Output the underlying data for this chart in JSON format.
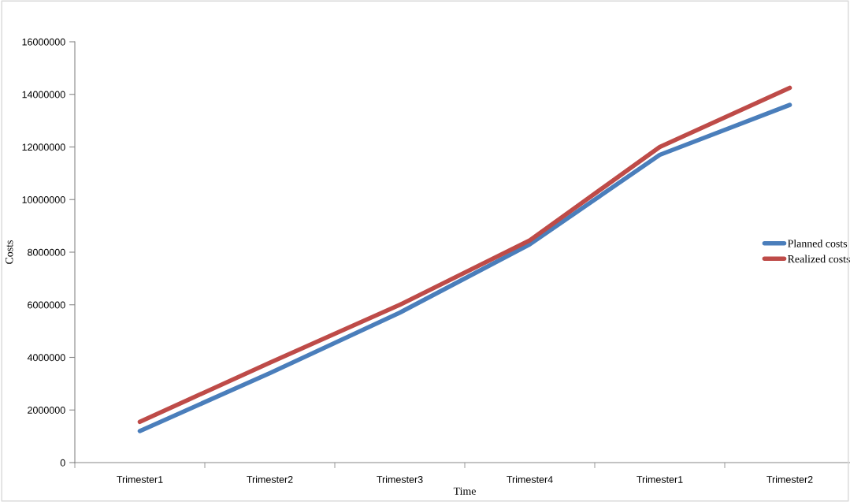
{
  "chart_data": {
    "type": "line",
    "xlabel": "Time",
    "ylabel": "Costs",
    "categories": [
      "Trimester1",
      "Trimester2",
      "Trimester3",
      "Trimester4",
      "Trimester1",
      "Trimester2"
    ],
    "series": [
      {
        "name": "Planned costs",
        "color": "#4a7ebb",
        "values": [
          1200000,
          3400000,
          5700000,
          8300000,
          11700000,
          13600000
        ]
      },
      {
        "name": "Realized costs",
        "color": "#be4b48",
        "values": [
          1550000,
          3800000,
          6000000,
          8450000,
          12000000,
          14250000
        ]
      }
    ],
    "ylim": [
      0,
      16000000
    ],
    "yticks": [
      0,
      2000000,
      4000000,
      6000000,
      8000000,
      10000000,
      12000000,
      14000000,
      16000000
    ],
    "grid": false,
    "legend": "right",
    "marker": "none",
    "line_style": "solid"
  }
}
